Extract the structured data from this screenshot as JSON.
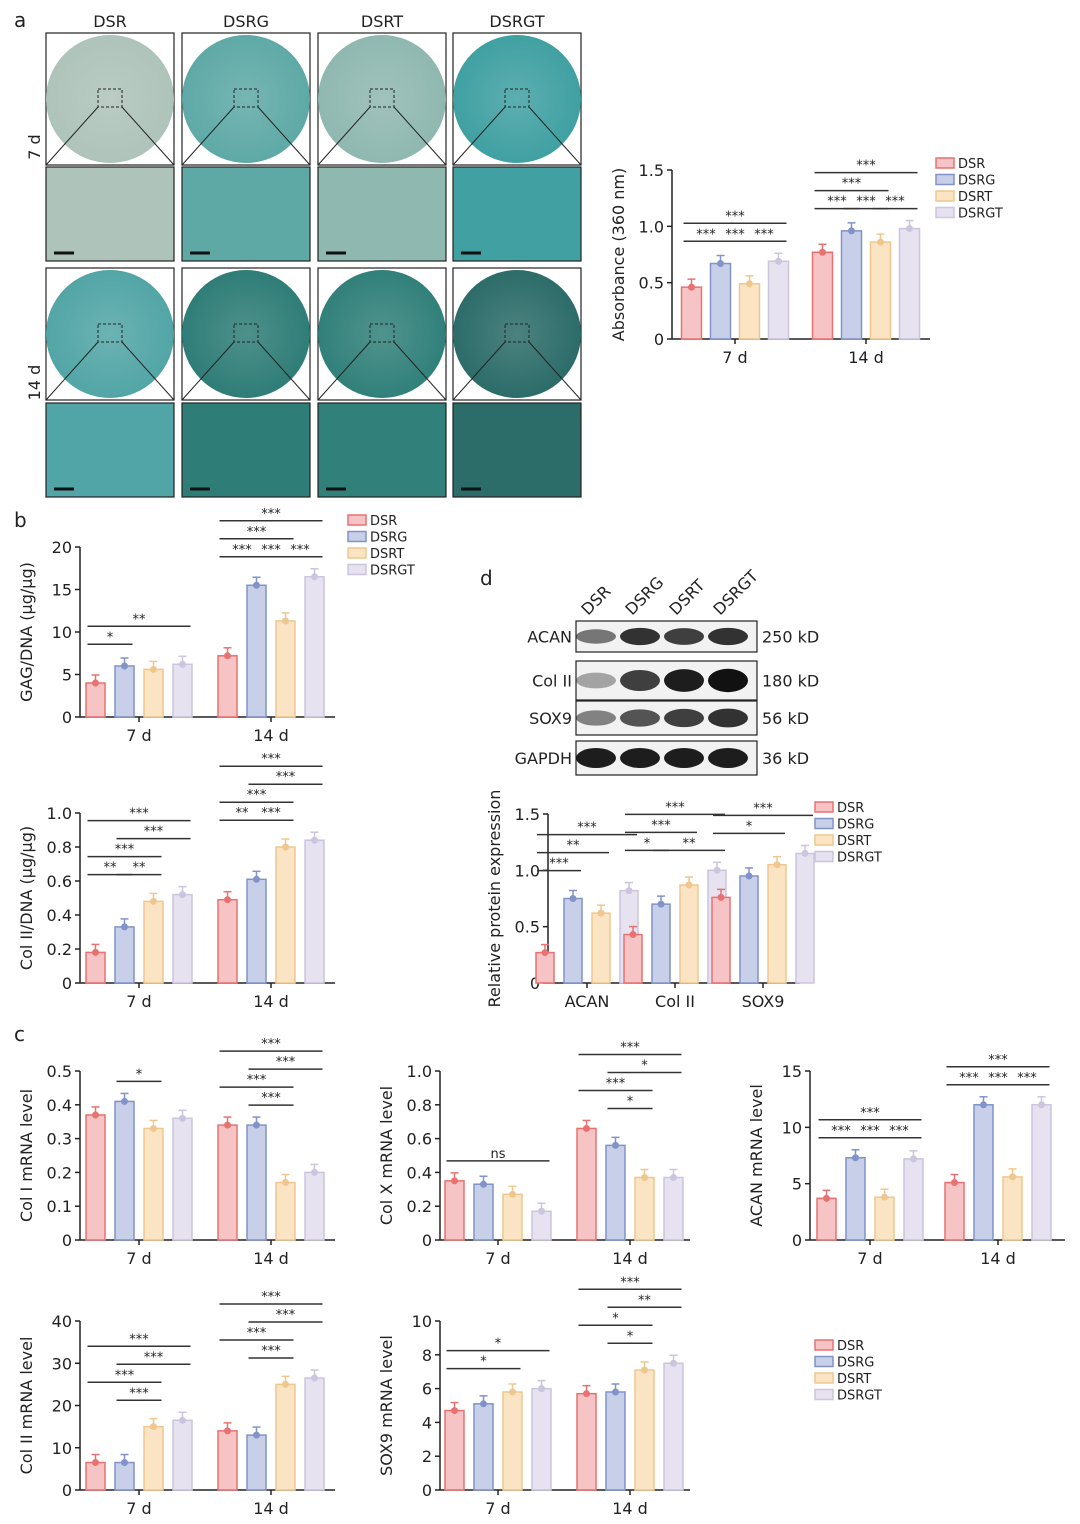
{
  "panel_letters": [
    "a",
    "b",
    "c",
    "d"
  ],
  "groups_legend": [
    "DSR",
    "DSRG",
    "DSRT",
    "DSRGT"
  ],
  "colors": {
    "fill": [
      "#f6c4c4",
      "#c8cfe8",
      "#fbe4c4",
      "#e6e2f0"
    ],
    "stroke": [
      "#e87272",
      "#8193c8",
      "#efc78e",
      "#cbc5de"
    ]
  },
  "staining": {
    "column_labels": [
      "DSR",
      "DSRG",
      "DSRT",
      "DSRGT"
    ],
    "row_labels": [
      "7 d",
      "14 d"
    ],
    "stain_colors": [
      [
        "#aec3ba",
        "#5ea9a6",
        "#8fb8b0",
        "#40a0a2"
      ],
      [
        "#52a5a6",
        "#2f7d77",
        "#31807a",
        "#2c6c69"
      ]
    ]
  },
  "western_blot": {
    "lanes": [
      "DSR",
      "DSRG",
      "DSRT",
      "DSRGT"
    ],
    "proteins": [
      {
        "name": "ACAN",
        "size": "250 kD",
        "intensity": [
          0.55,
          0.85,
          0.8,
          0.85
        ]
      },
      {
        "name": "Col II",
        "size": "180 kD",
        "intensity": [
          0.35,
          0.8,
          0.95,
          1.0
        ]
      },
      {
        "name": "SOX9",
        "size": "56 kD",
        "intensity": [
          0.5,
          0.7,
          0.8,
          0.85
        ]
      },
      {
        "name": "GAPDH",
        "size": "36 kD",
        "intensity": [
          0.95,
          0.95,
          0.95,
          0.95
        ]
      }
    ]
  },
  "chart_data": [
    {
      "id": "absorbance",
      "type": "bar",
      "ylabel": "Absorbance (360 nm)",
      "categories": [
        "7 d",
        "14 d"
      ],
      "ylim": [
        0,
        1.5
      ],
      "yticks": [
        "0",
        "0.5",
        "1.0",
        "1.5"
      ],
      "legend": "right",
      "series": [
        {
          "name": "DSR",
          "values": [
            0.46,
            0.77
          ]
        },
        {
          "name": "DSRG",
          "values": [
            0.67,
            0.96
          ]
        },
        {
          "name": "DSRT",
          "values": [
            0.49,
            0.86
          ]
        },
        {
          "name": "DSRGT",
          "values": [
            0.69,
            0.98
          ]
        }
      ],
      "significance": [
        [
          [
            0,
            1,
            "***"
          ],
          [
            1,
            2,
            "***"
          ],
          [
            2,
            3,
            "***"
          ],
          [
            0,
            3,
            "***"
          ]
        ],
        [
          [
            0,
            1,
            "***"
          ],
          [
            1,
            2,
            "***"
          ],
          [
            2,
            3,
            "***"
          ],
          [
            0,
            2,
            "***"
          ],
          [
            0,
            3,
            "***"
          ]
        ]
      ]
    },
    {
      "id": "gag",
      "type": "bar",
      "ylabel": "GAG/DNA (μg/μg)",
      "categories": [
        "7 d",
        "14 d"
      ],
      "ylim": [
        0,
        20
      ],
      "yticks": [
        "0",
        "5",
        "10",
        "15",
        "20"
      ],
      "legend": "right",
      "series": [
        {
          "name": "DSR",
          "values": [
            4.0,
            7.2
          ]
        },
        {
          "name": "DSRG",
          "values": [
            6.0,
            15.5
          ]
        },
        {
          "name": "DSRT",
          "values": [
            5.6,
            11.3
          ]
        },
        {
          "name": "DSRGT",
          "values": [
            6.2,
            16.5
          ]
        }
      ],
      "significance": [
        [
          [
            0,
            1,
            "*"
          ],
          [
            0,
            3,
            "**"
          ]
        ],
        [
          [
            0,
            1,
            "***"
          ],
          [
            1,
            2,
            "***"
          ],
          [
            2,
            3,
            "***"
          ],
          [
            0,
            2,
            "***"
          ],
          [
            0,
            3,
            "***"
          ]
        ]
      ]
    },
    {
      "id": "col2-dna",
      "type": "bar",
      "ylabel": "Col II/DNA (μg/μg)",
      "categories": [
        "7 d",
        "14 d"
      ],
      "ylim": [
        0,
        1.0
      ],
      "yticks": [
        "0",
        "0.2",
        "0.4",
        "0.6",
        "0.8",
        "1.0"
      ],
      "series": [
        {
          "name": "DSR",
          "values": [
            0.18,
            0.49
          ]
        },
        {
          "name": "DSRG",
          "values": [
            0.33,
            0.61
          ]
        },
        {
          "name": "DSRT",
          "values": [
            0.48,
            0.8
          ]
        },
        {
          "name": "DSRGT",
          "values": [
            0.52,
            0.84
          ]
        }
      ],
      "significance": [
        [
          [
            0,
            1,
            "**"
          ],
          [
            1,
            2,
            "**"
          ],
          [
            0,
            2,
            "***"
          ],
          [
            1,
            3,
            "***"
          ],
          [
            0,
            3,
            "***"
          ]
        ],
        [
          [
            0,
            1,
            "**"
          ],
          [
            1,
            2,
            "***"
          ],
          [
            0,
            2,
            "***"
          ],
          [
            1,
            3,
            "***"
          ],
          [
            0,
            3,
            "***"
          ]
        ]
      ]
    },
    {
      "id": "protein",
      "type": "bar",
      "ylabel": "Relative protein expression",
      "categories": [
        "ACAN",
        "Col II",
        "SOX9"
      ],
      "ylim": [
        0,
        1.5
      ],
      "yticks": [
        "0",
        "0.5",
        "1.0",
        "1.5"
      ],
      "legend": "right",
      "series": [
        {
          "name": "DSR",
          "values": [
            0.27,
            0.43,
            0.76
          ]
        },
        {
          "name": "DSRG",
          "values": [
            0.75,
            0.7,
            0.95
          ]
        },
        {
          "name": "DSRT",
          "values": [
            0.62,
            0.87,
            1.05
          ]
        },
        {
          "name": "DSRGT",
          "values": [
            0.82,
            1.0,
            1.15
          ]
        }
      ],
      "significance": [
        [
          [
            0,
            1,
            "***"
          ],
          [
            0,
            2,
            "**"
          ],
          [
            0,
            3,
            "***"
          ]
        ],
        [
          [
            0,
            1,
            "*"
          ],
          [
            0,
            2,
            "***"
          ],
          [
            1,
            3,
            "**"
          ],
          [
            0,
            3,
            "***"
          ]
        ],
        [
          [
            0,
            2,
            "*"
          ],
          [
            0,
            3,
            "***"
          ]
        ]
      ]
    },
    {
      "id": "col1-mrna",
      "type": "bar",
      "ylabel": "Col I mRNA level",
      "categories": [
        "7 d",
        "14 d"
      ],
      "ylim": [
        0,
        0.5
      ],
      "yticks": [
        "0",
        "0.1",
        "0.2",
        "0.3",
        "0.4",
        "0.5"
      ],
      "series": [
        {
          "name": "DSR",
          "values": [
            0.37,
            0.34
          ]
        },
        {
          "name": "DSRG",
          "values": [
            0.41,
            0.34
          ]
        },
        {
          "name": "DSRT",
          "values": [
            0.33,
            0.17
          ]
        },
        {
          "name": "DSRGT",
          "values": [
            0.36,
            0.2
          ]
        }
      ],
      "significance": [
        [
          [
            1,
            2,
            "*"
          ]
        ],
        [
          [
            1,
            2,
            "***"
          ],
          [
            0,
            2,
            "***"
          ],
          [
            1,
            3,
            "***"
          ],
          [
            0,
            3,
            "***"
          ]
        ]
      ]
    },
    {
      "id": "colx-mrna",
      "type": "bar",
      "ylabel": "Col X mRNA level",
      "categories": [
        "7 d",
        "14 d"
      ],
      "ylim": [
        0,
        1.0
      ],
      "yticks": [
        "0",
        "0.2",
        "0.4",
        "0.6",
        "0.8",
        "1.0"
      ],
      "series": [
        {
          "name": "DSR",
          "values": [
            0.35,
            0.66
          ]
        },
        {
          "name": "DSRG",
          "values": [
            0.33,
            0.56
          ]
        },
        {
          "name": "DSRT",
          "values": [
            0.27,
            0.37
          ]
        },
        {
          "name": "DSRGT",
          "values": [
            0.17,
            0.37
          ]
        }
      ],
      "significance": [
        [
          [
            0,
            3,
            "ns"
          ]
        ],
        [
          [
            1,
            2,
            "*"
          ],
          [
            0,
            2,
            "***"
          ],
          [
            1,
            3,
            "*"
          ],
          [
            0,
            3,
            "***"
          ]
        ]
      ]
    },
    {
      "id": "acan-mrna",
      "type": "bar",
      "ylabel": "ACAN mRNA level",
      "categories": [
        "7 d",
        "14 d"
      ],
      "ylim": [
        0,
        15
      ],
      "yticks": [
        "0",
        "5",
        "10",
        "15"
      ],
      "series": [
        {
          "name": "DSR",
          "values": [
            3.7,
            5.1
          ]
        },
        {
          "name": "DSRG",
          "values": [
            7.3,
            12.0
          ]
        },
        {
          "name": "DSRT",
          "values": [
            3.8,
            5.6
          ]
        },
        {
          "name": "DSRGT",
          "values": [
            7.2,
            12.0
          ]
        }
      ],
      "significance": [
        [
          [
            0,
            1,
            "***"
          ],
          [
            1,
            2,
            "***"
          ],
          [
            2,
            3,
            "***"
          ],
          [
            0,
            3,
            "***"
          ]
        ],
        [
          [
            0,
            1,
            "***"
          ],
          [
            1,
            2,
            "***"
          ],
          [
            2,
            3,
            "***"
          ],
          [
            0,
            3,
            "***"
          ]
        ]
      ]
    },
    {
      "id": "col2-mrna",
      "type": "bar",
      "ylabel": "Col II mRNA level",
      "categories": [
        "7 d",
        "14 d"
      ],
      "ylim": [
        0,
        40
      ],
      "yticks": [
        "0",
        "10",
        "20",
        "30",
        "40"
      ],
      "series": [
        {
          "name": "DSR",
          "values": [
            6.5,
            14.0
          ]
        },
        {
          "name": "DSRG",
          "values": [
            6.5,
            13.0
          ]
        },
        {
          "name": "DSRT",
          "values": [
            15.0,
            25.0
          ]
        },
        {
          "name": "DSRGT",
          "values": [
            16.5,
            26.5
          ]
        }
      ],
      "significance": [
        [
          [
            1,
            2,
            "***"
          ],
          [
            0,
            2,
            "***"
          ],
          [
            1,
            3,
            "***"
          ],
          [
            0,
            3,
            "***"
          ]
        ],
        [
          [
            1,
            2,
            "***"
          ],
          [
            0,
            2,
            "***"
          ],
          [
            1,
            3,
            "***"
          ],
          [
            0,
            3,
            "***"
          ]
        ]
      ]
    },
    {
      "id": "sox9-mrna",
      "type": "bar",
      "ylabel": "SOX9 mRNA level",
      "categories": [
        "7 d",
        "14 d"
      ],
      "ylim": [
        0,
        10
      ],
      "yticks": [
        "0",
        "2",
        "4",
        "6",
        "8",
        "10"
      ],
      "legend": "right",
      "series": [
        {
          "name": "DSR",
          "values": [
            4.7,
            5.7
          ]
        },
        {
          "name": "DSRG",
          "values": [
            5.1,
            5.8
          ]
        },
        {
          "name": "DSRT",
          "values": [
            5.8,
            7.1
          ]
        },
        {
          "name": "DSRGT",
          "values": [
            6.0,
            7.5
          ]
        }
      ],
      "significance": [
        [
          [
            0,
            2,
            "*"
          ],
          [
            0,
            3,
            "*"
          ]
        ],
        [
          [
            1,
            2,
            "*"
          ],
          [
            0,
            2,
            "*"
          ],
          [
            1,
            3,
            "**"
          ],
          [
            0,
            3,
            "***"
          ]
        ]
      ]
    }
  ]
}
